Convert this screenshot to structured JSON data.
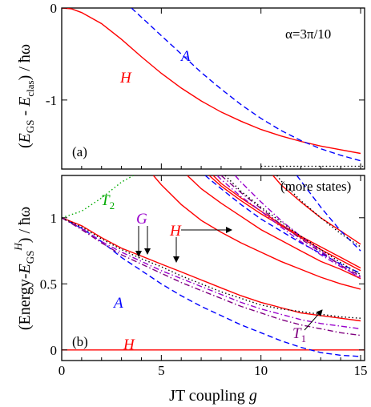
{
  "chart_data": [
    {
      "panel": "(a)",
      "type": "line",
      "ylabel": "(E_GS - E_clas) / ħω",
      "xlim": [
        0,
        15.2
      ],
      "ylim": [
        -1.75,
        0
      ],
      "xticks": [
        0,
        5,
        10,
        15
      ],
      "yticks": [
        0,
        -1
      ],
      "ytick_labels": [
        "0",
        "-1"
      ],
      "title_annotation": "α=3π/10",
      "series": [
        {
          "name": "H",
          "color": "#ff0000",
          "dash": "solid",
          "x": [
            0,
            0.5,
            1,
            2,
            3,
            4,
            5,
            6,
            7,
            8,
            9,
            10,
            11,
            12,
            13,
            14,
            15
          ],
          "y": [
            0,
            -0.01,
            -0.05,
            -0.17,
            -0.34,
            -0.53,
            -0.71,
            -0.87,
            -1.01,
            -1.13,
            -1.23,
            -1.32,
            -1.39,
            -1.45,
            -1.5,
            -1.54,
            -1.58
          ]
        },
        {
          "name": "A",
          "color": "#0000ff",
          "dash": "dashed",
          "x": [
            3.5,
            4,
            5,
            6,
            7,
            8,
            9,
            10,
            11,
            12,
            13,
            14,
            15
          ],
          "y": [
            0,
            -0.1,
            -0.3,
            -0.5,
            -0.7,
            -0.88,
            -1.05,
            -1.2,
            -1.33,
            -1.44,
            -1.53,
            -1.6,
            -1.66
          ]
        },
        {
          "name": "",
          "color": "#000000",
          "dash": "dotted",
          "x": [
            10,
            15.2
          ],
          "y": [
            -1.72,
            -1.72
          ]
        }
      ]
    },
    {
      "panel": "(b)",
      "type": "line",
      "xlabel": "JT coupling g",
      "ylabel": "(Energy-E_GS^H) / ħω",
      "xlim": [
        0,
        15.2
      ],
      "ylim": [
        -0.08,
        1.32
      ],
      "xticks": [
        0,
        5,
        10,
        15
      ],
      "yticks": [
        0,
        0.5,
        1
      ],
      "ytick_labels": [
        "0",
        "0.5",
        "1"
      ],
      "note": "(more states)",
      "series": [
        {
          "name": "H",
          "color": "#ff0000",
          "dash": "solid",
          "x": [
            0,
            15.2
          ],
          "y": [
            0,
            0
          ]
        },
        {
          "name": "A",
          "color": "#0000ff",
          "dash": "dashed",
          "x": [
            0,
            1,
            2,
            3,
            4,
            5,
            6,
            7,
            8,
            9,
            10,
            11,
            12,
            13,
            14,
            15
          ],
          "y": [
            1,
            0.92,
            0.82,
            0.7,
            0.6,
            0.5,
            0.41,
            0.33,
            0.26,
            0.19,
            0.13,
            0.07,
            0.02,
            -0.02,
            -0.04,
            -0.05
          ]
        },
        {
          "name": "T2",
          "color": "#00aa00",
          "dash": "dotted",
          "x": [
            0,
            1,
            2,
            3,
            3.6
          ],
          "y": [
            1,
            1.05,
            1.15,
            1.27,
            1.32
          ]
        },
        {
          "name": "H",
          "color": "#ff0000",
          "dash": "solid",
          "x": [
            0,
            1,
            2,
            3,
            4,
            5,
            6,
            7,
            8,
            9,
            10,
            11,
            12,
            13,
            14,
            15
          ],
          "y": [
            1,
            0.94,
            0.85,
            0.77,
            0.71,
            0.65,
            0.59,
            0.53,
            0.47,
            0.41,
            0.36,
            0.32,
            0.28,
            0.26,
            0.24,
            0.22
          ]
        },
        {
          "name": "G",
          "color": "#9900cc",
          "dash": "dashdot",
          "x": [
            0,
            1,
            2,
            3,
            4,
            5,
            6,
            7,
            8,
            9,
            10,
            11,
            12,
            13,
            14,
            15
          ],
          "y": [
            1,
            0.92,
            0.82,
            0.74,
            0.67,
            0.6,
            0.54,
            0.48,
            0.42,
            0.36,
            0.31,
            0.27,
            0.23,
            0.2,
            0.18,
            0.16
          ]
        },
        {
          "name": "T1",
          "color": "#800080",
          "dash": "dashdot",
          "x": [
            0,
            1,
            2,
            3,
            4,
            5,
            6,
            7,
            8,
            9,
            10,
            11,
            12,
            13,
            14,
            15
          ],
          "y": [
            1,
            0.91,
            0.81,
            0.72,
            0.65,
            0.58,
            0.51,
            0.45,
            0.39,
            0.33,
            0.28,
            0.23,
            0.19,
            0.16,
            0.13,
            0.11
          ]
        },
        {
          "name": "",
          "color": "#000000",
          "dash": "dotted",
          "x": [
            0,
            1,
            2,
            3,
            4,
            5,
            6,
            7,
            8,
            9,
            10,
            11,
            12,
            13,
            14,
            15
          ],
          "y": [
            1,
            0.93,
            0.84,
            0.76,
            0.69,
            0.63,
            0.56,
            0.5,
            0.44,
            0.39,
            0.34,
            0.31,
            0.29,
            0.27,
            0.25,
            0.24
          ]
        },
        {
          "name": "H",
          "color": "#ff0000",
          "dash": "solid",
          "x": [
            4.6,
            5,
            6,
            7,
            8,
            9,
            10,
            11,
            12,
            13,
            14,
            15
          ],
          "y": [
            1.32,
            1.25,
            1.1,
            0.98,
            0.89,
            0.81,
            0.74,
            0.67,
            0.61,
            0.55,
            0.5,
            0.46
          ]
        },
        {
          "name": "H",
          "color": "#ff0000",
          "dash": "solid",
          "x": [
            6.3,
            7,
            8,
            9,
            10,
            11,
            12,
            13,
            14,
            15
          ],
          "y": [
            1.32,
            1.22,
            1.11,
            1.01,
            0.91,
            0.83,
            0.75,
            0.67,
            0.61,
            0.54
          ]
        },
        {
          "name": "H",
          "color": "#ff0000",
          "dash": "solid",
          "x": [
            7.4,
            8,
            9,
            10,
            11,
            12,
            13,
            14,
            15
          ],
          "y": [
            1.32,
            1.24,
            1.13,
            1.03,
            0.94,
            0.85,
            0.76,
            0.68,
            0.6
          ]
        },
        {
          "name": "H",
          "color": "#ff0000",
          "dash": "solid",
          "x": [
            7.6,
            8,
            9,
            10,
            11,
            12,
            13,
            14,
            15
          ],
          "y": [
            1.32,
            1.26,
            1.15,
            1.05,
            0.95,
            0.86,
            0.78,
            0.7,
            0.62
          ]
        },
        {
          "name": "H",
          "color": "#ff0000",
          "dash": "solid",
          "x": [
            10.6,
            11,
            12,
            13,
            14,
            15
          ],
          "y": [
            1.32,
            1.25,
            1.12,
            1.0,
            0.9,
            0.8
          ]
        },
        {
          "name": "A",
          "color": "#0000ff",
          "dash": "dashed",
          "x": [
            7.2,
            8,
            9,
            10,
            11,
            12,
            13,
            14,
            15
          ],
          "y": [
            1.32,
            1.22,
            1.1,
            0.99,
            0.9,
            0.81,
            0.73,
            0.65,
            0.58
          ]
        },
        {
          "name": "A",
          "color": "#0000ff",
          "dash": "dashed",
          "x": [
            11.8,
            12,
            13,
            14,
            15
          ],
          "y": [
            1.32,
            1.28,
            1.08,
            0.9,
            0.75
          ]
        },
        {
          "name": "G",
          "color": "#9900cc",
          "dash": "dashdot",
          "x": [
            7.8,
            8,
            9,
            10,
            11,
            12,
            13,
            14,
            15
          ],
          "y": [
            1.32,
            1.29,
            1.16,
            1.05,
            0.93,
            0.82,
            0.72,
            0.63,
            0.55
          ]
        },
        {
          "name": "G",
          "color": "#9900cc",
          "dash": "dashdot",
          "x": [
            8.7,
            9,
            10,
            11,
            12,
            13,
            14,
            15
          ],
          "y": [
            1.32,
            1.27,
            1.12,
            0.98,
            0.86,
            0.75,
            0.64,
            0.54
          ]
        },
        {
          "name": "T1",
          "color": "#800080",
          "dash": "dashdot",
          "x": [
            8,
            9,
            10,
            11,
            12,
            13,
            14,
            15
          ],
          "y": [
            1.32,
            1.19,
            1.07,
            0.95,
            0.84,
            0.74,
            0.64,
            0.56
          ]
        },
        {
          "name": "",
          "color": "#000000",
          "dash": "dotted",
          "x": [
            10.8,
            11,
            12,
            13,
            14,
            15
          ],
          "y": [
            1.32,
            1.28,
            1.13,
            1.0,
            0.88,
            0.78
          ]
        },
        {
          "name": "",
          "color": "#000000",
          "dash": "dotted",
          "x": [
            8.2,
            9,
            10,
            11,
            12,
            13,
            14,
            15
          ],
          "y": [
            1.32,
            1.2,
            1.08,
            0.97,
            0.86,
            0.76,
            0.66,
            0.57
          ]
        }
      ]
    }
  ],
  "labels": {
    "panel_a_tag": "(a)",
    "panel_b_tag": "(b)",
    "alpha": "α=3π/10",
    "more_states": "(more states)",
    "a_curve_H": "H",
    "a_curve_A": "A",
    "b_curve_T2": "T",
    "b_curve_T2_sub": "2",
    "b_curve_G": "G",
    "b_curve_H_mid": "H",
    "b_curve_A": "A",
    "b_curve_H_zero": "H",
    "b_curve_T1": "T",
    "b_curve_T1_sub": "1",
    "xlabel_main": "JT coupling ",
    "xlabel_var": "g",
    "ylabel_a": "(E_GS - E_clas) / ħω",
    "ylabel_b": "(Energy-E_GS^H) / ħω"
  },
  "colors": {
    "H": "#ff0000",
    "A": "#0000ff",
    "T2": "#00aa00",
    "G": "#9900cc",
    "T1": "#800080",
    "dotted": "#000000"
  }
}
